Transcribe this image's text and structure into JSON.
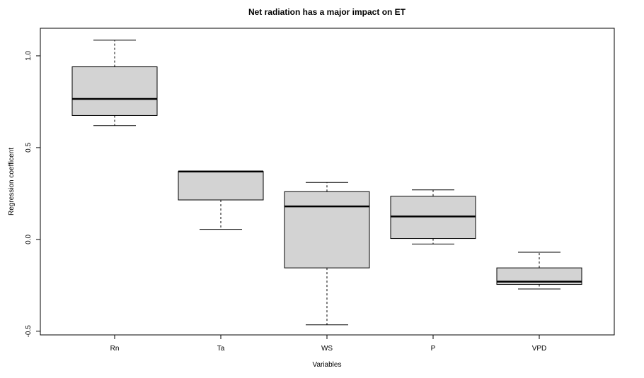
{
  "chart_data": {
    "type": "boxplot",
    "title": "Net radiation has a major impact on ET",
    "xlabel": "Variables",
    "ylabel": "Regression coefficent",
    "ylim": [
      -0.52,
      1.15
    ],
    "yticks": [
      -0.5,
      0.0,
      0.5,
      1.0
    ],
    "ytick_labels": [
      "-0.5",
      "0.0",
      "0.5",
      "1.0"
    ],
    "categories": [
      "Rn",
      "Ta",
      "WS",
      "P",
      "VPD"
    ],
    "boxes": [
      {
        "name": "Rn",
        "whisker_low": 0.62,
        "q1": 0.675,
        "median": 0.765,
        "q3": 0.94,
        "whisker_high": 1.085
      },
      {
        "name": "Ta",
        "whisker_low": 0.055,
        "q1": 0.215,
        "median": 0.37,
        "q3": 0.37,
        "whisker_high": 0.37
      },
      {
        "name": "WS",
        "whisker_low": -0.465,
        "q1": -0.155,
        "median": 0.18,
        "q3": 0.26,
        "whisker_high": 0.31
      },
      {
        "name": "P",
        "whisker_low": -0.025,
        "q1": 0.005,
        "median": 0.125,
        "q3": 0.235,
        "whisker_high": 0.27
      },
      {
        "name": "VPD",
        "whisker_low": -0.27,
        "q1": -0.245,
        "median": -0.23,
        "q3": -0.155,
        "whisker_high": -0.07
      }
    ],
    "box_fill": "#d3d3d3",
    "grid": false
  }
}
